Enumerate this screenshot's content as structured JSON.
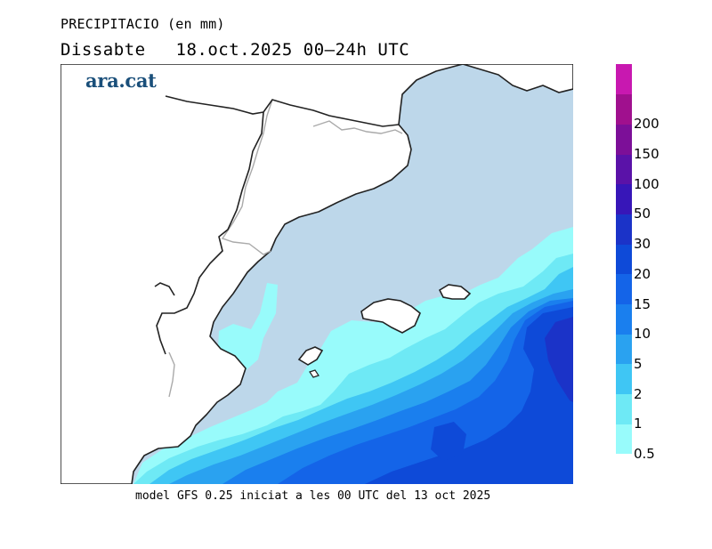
{
  "header": {
    "title": "PRECIPITACIO (en mm)",
    "day": "Dissabte",
    "date_range": "18.oct.2025 00–24h UTC"
  },
  "brand": {
    "logo_text": "ara.cat"
  },
  "footer": {
    "model_note": "model GFS 0.25 iniciat a les 00 UTC del 13 oct 2025"
  },
  "legend": {
    "levels": [
      {
        "label": "0.5",
        "color": "#98fbfb"
      },
      {
        "label": "1",
        "color": "#6ee9f5"
      },
      {
        "label": "2",
        "color": "#3fc6f4"
      },
      {
        "label": "5",
        "color": "#2aa2f0"
      },
      {
        "label": "10",
        "color": "#1a7fee"
      },
      {
        "label": "15",
        "color": "#1464e8"
      },
      {
        "label": "20",
        "color": "#0e4ad8"
      },
      {
        "label": "30",
        "color": "#1b33c8"
      },
      {
        "label": "50",
        "color": "#3716b8"
      },
      {
        "label": "100",
        "color": "#5a12a8"
      },
      {
        "label": "150",
        "color": "#7c0f98"
      },
      {
        "label": "200",
        "color": "#a0108e"
      },
      {
        "label": "",
        "color": "#c818b0"
      }
    ]
  },
  "map": {
    "sea_color": "#bdd7ea",
    "land_color": "#ffffff",
    "coast_color": "#222222",
    "border_color": "#aaaaaa"
  }
}
